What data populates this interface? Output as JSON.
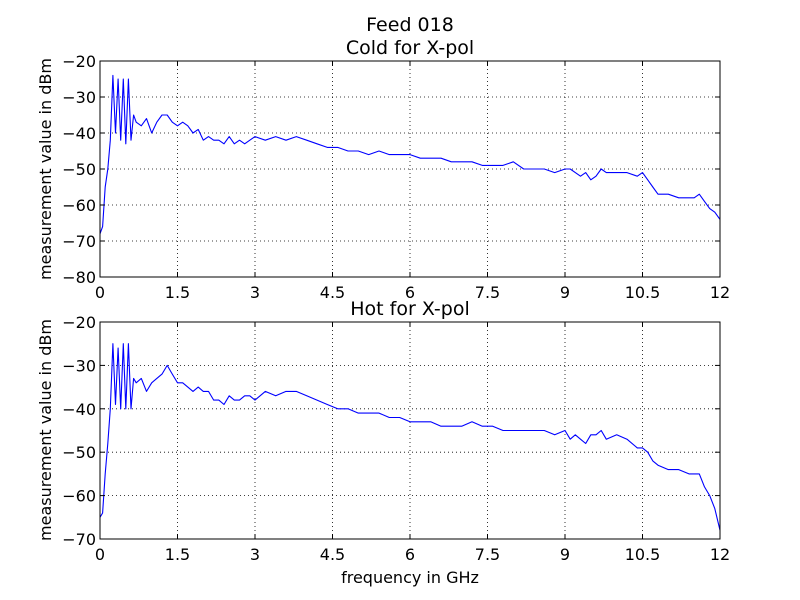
{
  "figure_title": "Feed 018",
  "colors": {
    "line": "#0000ff",
    "axes": "#000000",
    "grid": "#000000",
    "background": "#ffffff"
  },
  "chart_data": [
    {
      "type": "line",
      "title": "Cold for X-pol",
      "xlabel": "",
      "ylabel": "measurement value in dBm",
      "xlim": [
        0,
        12
      ],
      "ylim": [
        -80,
        -20
      ],
      "xticks": [
        0,
        1.5,
        3,
        4.5,
        6,
        7.5,
        9,
        10.5,
        12
      ],
      "xtick_labels": [
        "0",
        "1.5",
        "3",
        "4.5",
        "6",
        "7.5",
        "9",
        "10.5",
        "12"
      ],
      "yticks": [
        -80,
        -70,
        -60,
        -50,
        -40,
        -30,
        -20
      ],
      "ytick_labels": [
        "−80",
        "−70",
        "−60",
        "−50",
        "−40",
        "−30",
        "−20"
      ],
      "grid": true,
      "legend": "none",
      "series": [
        {
          "x": [
            0,
            0.05,
            0.1,
            0.15,
            0.2,
            0.25,
            0.3,
            0.35,
            0.4,
            0.45,
            0.5,
            0.55,
            0.6,
            0.65,
            0.7,
            0.8,
            0.9,
            1.0,
            1.1,
            1.2,
            1.3,
            1.4,
            1.5,
            1.6,
            1.7,
            1.8,
            1.9,
            2.0,
            2.1,
            2.2,
            2.3,
            2.4,
            2.5,
            2.6,
            2.7,
            2.8,
            2.9,
            3.0,
            3.2,
            3.4,
            3.6,
            3.8,
            4.0,
            4.2,
            4.4,
            4.6,
            4.8,
            5.0,
            5.2,
            5.4,
            5.6,
            5.8,
            6.0,
            6.2,
            6.4,
            6.6,
            6.8,
            7.0,
            7.2,
            7.4,
            7.6,
            7.8,
            8.0,
            8.2,
            8.4,
            8.6,
            8.8,
            9.0,
            9.1,
            9.2,
            9.3,
            9.4,
            9.5,
            9.6,
            9.7,
            9.8,
            10.0,
            10.2,
            10.4,
            10.5,
            10.6,
            10.7,
            10.8,
            11.0,
            11.2,
            11.4,
            11.5,
            11.6,
            11.7,
            11.8,
            11.9,
            12.0
          ],
          "y": [
            -68,
            -66,
            -55,
            -50,
            -42,
            -24,
            -40,
            -25,
            -42,
            -25,
            -43,
            -25,
            -42,
            -35,
            -37,
            -38,
            -36,
            -40,
            -37,
            -35,
            -35,
            -37,
            -38,
            -37,
            -38,
            -40,
            -39,
            -42,
            -41,
            -42,
            -42,
            -43,
            -41,
            -43,
            -42,
            -43,
            -42,
            -41,
            -42,
            -41,
            -42,
            -41,
            -42,
            -43,
            -44,
            -44,
            -45,
            -45,
            -46,
            -45,
            -46,
            -46,
            -46,
            -47,
            -47,
            -47,
            -48,
            -48,
            -48,
            -49,
            -49,
            -49,
            -48,
            -50,
            -50,
            -50,
            -51,
            -50,
            -50,
            -51,
            -52,
            -51,
            -53,
            -52,
            -50,
            -51,
            -51,
            -51,
            -52,
            -51,
            -53,
            -55,
            -57,
            -57,
            -58,
            -58,
            -58,
            -57,
            -59,
            -61,
            -62,
            -64
          ],
          "y_end_tail": []
        }
      ]
    },
    {
      "type": "line",
      "title": "Hot for X-pol",
      "xlabel": "frequency in GHz",
      "ylabel": "measurement value in dBm",
      "xlim": [
        0,
        12
      ],
      "ylim": [
        -70,
        -20
      ],
      "xticks": [
        0,
        1.5,
        3,
        4.5,
        6,
        7.5,
        9,
        10.5,
        12
      ],
      "xtick_labels": [
        "0",
        "1.5",
        "3",
        "4.5",
        "6",
        "7.5",
        "9",
        "10.5",
        "12"
      ],
      "yticks": [
        -70,
        -60,
        -50,
        -40,
        -30,
        -20
      ],
      "ytick_labels": [
        "−70",
        "−60",
        "−50",
        "−40",
        "−30",
        "−20"
      ],
      "grid": true,
      "legend": "none",
      "series": [
        {
          "x": [
            0,
            0.05,
            0.1,
            0.15,
            0.2,
            0.25,
            0.3,
            0.35,
            0.4,
            0.45,
            0.5,
            0.55,
            0.6,
            0.65,
            0.7,
            0.8,
            0.9,
            1.0,
            1.1,
            1.2,
            1.3,
            1.4,
            1.5,
            1.6,
            1.7,
            1.8,
            1.9,
            2.0,
            2.1,
            2.2,
            2.3,
            2.4,
            2.5,
            2.6,
            2.7,
            2.8,
            2.9,
            3.0,
            3.2,
            3.4,
            3.6,
            3.8,
            4.0,
            4.2,
            4.4,
            4.6,
            4.8,
            5.0,
            5.2,
            5.4,
            5.6,
            5.8,
            6.0,
            6.2,
            6.4,
            6.6,
            6.8,
            7.0,
            7.2,
            7.4,
            7.6,
            7.8,
            8.0,
            8.2,
            8.4,
            8.6,
            8.8,
            9.0,
            9.1,
            9.2,
            9.3,
            9.4,
            9.5,
            9.6,
            9.7,
            9.8,
            10.0,
            10.2,
            10.4,
            10.5,
            10.6,
            10.7,
            10.8,
            11.0,
            11.2,
            11.4,
            11.5,
            11.6,
            11.7,
            11.8,
            11.9,
            12.0
          ],
          "y": [
            -65,
            -64,
            -55,
            -48,
            -40,
            -25,
            -39,
            -26,
            -40,
            -25,
            -40,
            -25,
            -40,
            -33,
            -34,
            -33,
            -36,
            -34,
            -33,
            -32,
            -30,
            -32,
            -34,
            -34,
            -35,
            -36,
            -35,
            -36,
            -36,
            -38,
            -38,
            -39,
            -37,
            -38,
            -38,
            -37,
            -37,
            -38,
            -36,
            -37,
            -36,
            -36,
            -37,
            -38,
            -39,
            -40,
            -40,
            -41,
            -41,
            -41,
            -42,
            -42,
            -43,
            -43,
            -43,
            -44,
            -44,
            -44,
            -43,
            -44,
            -44,
            -45,
            -45,
            -45,
            -45,
            -45,
            -46,
            -45,
            -47,
            -46,
            -47,
            -48,
            -46,
            -46,
            -45,
            -47,
            -46,
            -47,
            -49,
            -49,
            -50,
            -52,
            -53,
            -54,
            -54,
            -55,
            -55,
            -55,
            -58,
            -60,
            -63,
            -68
          ]
        }
      ]
    }
  ]
}
